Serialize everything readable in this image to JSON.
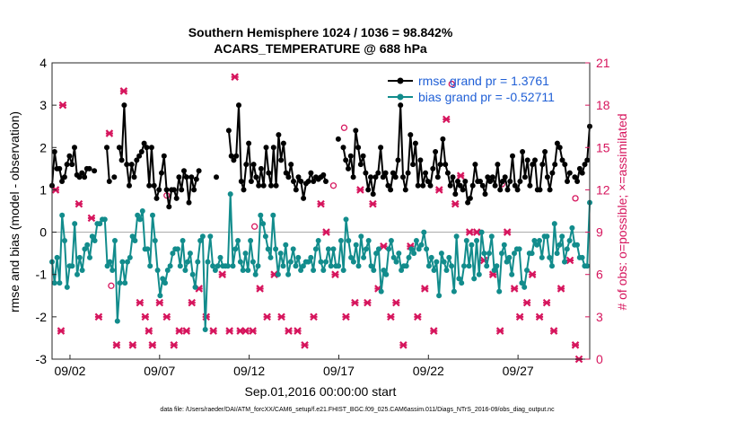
{
  "chart_data": {
    "type": "line",
    "title": [
      "Southern Hemisphere 1024 / 1036 = 98.842%",
      "ACARS_TEMPERATURE @ 688 hPa"
    ],
    "xlabel": "Sep.01,2016 00:00:00 start",
    "ylabel_left": "rmse and bias (model - observation)",
    "ylabel_right": "# of obs: o=possible; ×=assimilated",
    "footer": "data file: /Users/raeder/DAI/ATM_forcXX/CAM6_setup/f.e21.FHIST_BGC.f09_025.CAM6assim.011/Diags_NTrS_2016-09/obs_diag_output.nc",
    "x_ticks": [
      2,
      7,
      12,
      17,
      22,
      27
    ],
    "x_tick_labels": [
      "09/02",
      "09/07",
      "09/12",
      "09/17",
      "09/22",
      "09/27"
    ],
    "xlim": [
      1,
      31
    ],
    "ylim_left": [
      -3,
      4
    ],
    "y_ticks_left": [
      -3,
      -2,
      -1,
      0,
      1,
      2,
      3,
      4
    ],
    "ylim_right": [
      0,
      21
    ],
    "y_ticks_right": [
      0,
      3,
      6,
      9,
      12,
      15,
      18,
      21
    ],
    "grid": false,
    "legend_location": "top-right",
    "colors": {
      "rmse": "#000000",
      "bias": "#128c8c",
      "obs": "#d6155d",
      "zero_line": "#b0b0b0",
      "legend_text": "#1f5fd6"
    },
    "series": [
      {
        "name": "rmse grand pr = 1.3761",
        "values": [
          1.1,
          1.9,
          1.5,
          1.5,
          1.2,
          1.3,
          1.6,
          1.8,
          1.6,
          2.0,
          1.35,
          1.3,
          1.4,
          1.3,
          1.5,
          1.5,
          null,
          1.45,
          null,
          null,
          null,
          null,
          2.0,
          1.2,
          null,
          1.3,
          null,
          2.0,
          1.7,
          3.0,
          1.6,
          1.1,
          1.6,
          1.3,
          1.7,
          1.8,
          1.9,
          2.1,
          2.0,
          1.1,
          2.0,
          1.1,
          0.8,
          1.0,
          1.4,
          1.8,
          1.0,
          0.6,
          1.0,
          1.0,
          0.8,
          1.3,
          1.0,
          1.45,
          1.3,
          0.7,
          1.3,
          1.0,
          1.25,
          1.45,
          null,
          null,
          null,
          null,
          null,
          null,
          1.3,
          null,
          null,
          null,
          null,
          2.4,
          1.8,
          1.7,
          1.8,
          3.0,
          1.2,
          1.0,
          1.6,
          2.1,
          1.2,
          1.6,
          1.3,
          1.1,
          1.5,
          1.1,
          2.0,
          1.4,
          1.1,
          2.0,
          1.1,
          2.3,
          1.7,
          2.1,
          1.4,
          1.3,
          1.6,
          1.2,
          1.0,
          1.3,
          1.2,
          0.8,
          1.15,
          1.2,
          1.4,
          1.2,
          1.3,
          1.25,
          1.3,
          1.35,
          1.2,
          null,
          null,
          null,
          null,
          2.2,
          null,
          2.0,
          1.7,
          1.5,
          1.8,
          1.3,
          2.4,
          2.0,
          1.6,
          1.8,
          1.4,
          1.0,
          1.3,
          0.9,
          1.3,
          1.4,
          2.0,
          1.3,
          1.4,
          1.1,
          1.0,
          1.4,
          1.3,
          1.7,
          3.0,
          1.3,
          1.0,
          1.4,
          2.3,
          1.6,
          2.1,
          1.1,
          1.7,
          1.1,
          1.4,
          1.2,
          1.1,
          1.5,
          1.9,
          1.3,
          1.6,
          2.2,
          1.6,
          1.4,
          1.1,
          1.3,
          0.9,
          1.2,
          1.1,
          1.0,
          1.2,
          0.7,
          0.8,
          1.1,
          1.6,
          1.2,
          1.2,
          1.1,
          0.9,
          1.3,
          1.2,
          1.3,
          1.1,
          1.6,
          1.0,
          1.2,
          1.3,
          1.0,
          1.2,
          1.8,
          1.1,
          1.0,
          1.2,
          1.9,
          1.3,
          1.7,
          1.1,
          1.6,
          1.7,
          1.0,
          1.0,
          1.6,
          1.9,
          1.3,
          1.0,
          1.4,
          1.6,
          2.1,
          2.0,
          1.7,
          1.6,
          1.2,
          1.4,
          null,
          1.3,
          1.2,
          1.5,
          1.4,
          1.6,
          1.7,
          2.5
        ]
      },
      {
        "name": "bias grand pr = -0.52711",
        "values": [
          -0.7,
          -1.2,
          -0.6,
          -1.2,
          0.4,
          -0.2,
          -1.3,
          -0.8,
          -0.8,
          0.2,
          -1.0,
          -0.6,
          -0.9,
          -0.4,
          -0.3,
          -0.6,
          -0.1,
          -0.2,
          0.2,
          0.2,
          0.3,
          0.3,
          -0.8,
          -0.7,
          -0.9,
          -0.2,
          -2.1,
          -1.2,
          -0.7,
          -1.2,
          -0.7,
          -0.6,
          -0.1,
          -0.2,
          0.4,
          0.3,
          0.5,
          -0.4,
          -0.4,
          -0.8,
          0.4,
          -0.2,
          -0.9,
          -1.5,
          -1.1,
          -1.2,
          -0.9,
          -0.8,
          -0.5,
          -0.4,
          -0.4,
          -0.8,
          -0.2,
          -0.9,
          -0.7,
          -0.5,
          -1.0,
          -1.3,
          -0.7,
          -0.2,
          -0.1,
          -2.3,
          -0.7,
          -0.1,
          -0.8,
          -0.9,
          -0.8,
          -0.6,
          -0.8,
          -0.8,
          -0.8,
          0.9,
          -0.8,
          -0.4,
          -0.2,
          -0.7,
          -0.9,
          -0.5,
          -0.9,
          -0.2,
          -0.7,
          -1.0,
          -0.8,
          0.4,
          0.2,
          -0.1,
          -0.4,
          -0.6,
          0.4,
          -0.4,
          -1.0,
          -0.5,
          -0.8,
          -0.3,
          -1.0,
          -0.7,
          -0.4,
          -0.8,
          -0.6,
          -0.9,
          -0.8,
          -0.7,
          -0.7,
          -0.6,
          -0.9,
          -0.4,
          -0.2,
          -0.7,
          -0.9,
          -0.7,
          -0.4,
          -0.8,
          -0.4,
          -0.8,
          -0.8,
          -0.2,
          -0.9,
          0.3,
          -0.2,
          -0.6,
          -0.7,
          -0.3,
          -0.8,
          -0.1,
          -0.6,
          -0.4,
          -0.2,
          -0.8,
          -0.9,
          -0.5,
          -0.4,
          -1.4,
          -0.9,
          -1.0,
          -0.4,
          -0.2,
          -0.6,
          -0.7,
          -0.5,
          -0.9,
          -0.8,
          -0.8,
          -0.6,
          -0.4,
          -0.5,
          -0.2,
          -0.4,
          -0.3,
          0.0,
          -0.4,
          -0.8,
          -0.6,
          -0.9,
          -0.7,
          -1.5,
          -0.5,
          -0.7,
          -0.9,
          -0.6,
          -0.8,
          -1.4,
          -0.1,
          -1.1,
          -1.2,
          -0.8,
          -0.2,
          -0.8,
          -0.3,
          -1.1,
          -0.2,
          -1.0,
          0.0,
          -0.5,
          -0.8,
          -0.5,
          -0.1,
          -0.9,
          -0.8,
          -1.4,
          -0.5,
          -0.3,
          -0.7,
          -0.6,
          -1.0,
          -0.5,
          -0.4,
          -0.4,
          -1.2,
          -1.3,
          -0.9,
          -0.5,
          -0.5,
          -0.2,
          -0.3,
          -0.2,
          -0.6,
          -0.1,
          -0.1,
          -0.6,
          -0.8,
          0.2,
          -0.5,
          -0.3,
          -0.1,
          -0.7,
          -0.4,
          -0.2,
          0.1,
          -0.3,
          -0.3,
          -0.6,
          -0.6,
          -0.8,
          -0.8,
          0.7
        ]
      }
    ],
    "obs_assimilated": [
      [
        1.2,
        12
      ],
      [
        1.5,
        2
      ],
      [
        1.6,
        18
      ],
      [
        2.5,
        11
      ],
      [
        3.2,
        10
      ],
      [
        3.6,
        3
      ],
      [
        4.2,
        16
      ],
      [
        4.6,
        1
      ],
      [
        5.0,
        19
      ],
      [
        5.5,
        1
      ],
      [
        5.9,
        4
      ],
      [
        6.2,
        3
      ],
      [
        6.4,
        2
      ],
      [
        6.6,
        1
      ],
      [
        7.0,
        4
      ],
      [
        7.4,
        3
      ],
      [
        7.8,
        1
      ],
      [
        8.1,
        2
      ],
      [
        8.5,
        2
      ],
      [
        8.8,
        4
      ],
      [
        9.2,
        5
      ],
      [
        9.6,
        3
      ],
      [
        10.0,
        2
      ],
      [
        10.5,
        6
      ],
      [
        10.9,
        2
      ],
      [
        11.2,
        20
      ],
      [
        11.5,
        2
      ],
      [
        11.8,
        2
      ],
      [
        12.2,
        2
      ],
      [
        12.6,
        5
      ],
      [
        13.0,
        3
      ],
      [
        13.4,
        6
      ],
      [
        13.8,
        3
      ],
      [
        14.2,
        2
      ],
      [
        14.7,
        2
      ],
      [
        15.1,
        1
      ],
      [
        15.6,
        3
      ],
      [
        16.0,
        11
      ],
      [
        16.3,
        9
      ],
      [
        16.8,
        6
      ],
      [
        17.4,
        3
      ],
      [
        17.9,
        4
      ],
      [
        18.2,
        12
      ],
      [
        18.6,
        4
      ],
      [
        18.9,
        11
      ],
      [
        19.2,
        5
      ],
      [
        19.5,
        8
      ],
      [
        19.9,
        3
      ],
      [
        20.2,
        4
      ],
      [
        20.6,
        1
      ],
      [
        21.0,
        8
      ],
      [
        21.4,
        3
      ],
      [
        21.8,
        5
      ],
      [
        22.3,
        2
      ],
      [
        22.6,
        12
      ],
      [
        23.0,
        17
      ],
      [
        23.5,
        11
      ],
      [
        23.8,
        13
      ],
      [
        24.3,
        9
      ],
      [
        24.7,
        9
      ],
      [
        25.1,
        7
      ],
      [
        25.6,
        6
      ],
      [
        26.0,
        2
      ],
      [
        26.4,
        9
      ],
      [
        26.8,
        5
      ],
      [
        27.1,
        3
      ],
      [
        27.5,
        4
      ],
      [
        27.8,
        6
      ],
      [
        28.2,
        3
      ],
      [
        28.6,
        4
      ],
      [
        29.0,
        2
      ],
      [
        29.4,
        5
      ],
      [
        29.9,
        7
      ],
      [
        30.2,
        1
      ],
      [
        30.4,
        0
      ]
    ],
    "obs_possible": [
      [
        4.3,
        5.2
      ],
      [
        7.4,
        11.6
      ],
      [
        12.3,
        9.4
      ],
      [
        16.7,
        12.3
      ],
      [
        17.3,
        16.4
      ],
      [
        23.3,
        19.5
      ],
      [
        26.1,
        12.4
      ],
      [
        30.2,
        11.4
      ]
    ]
  }
}
